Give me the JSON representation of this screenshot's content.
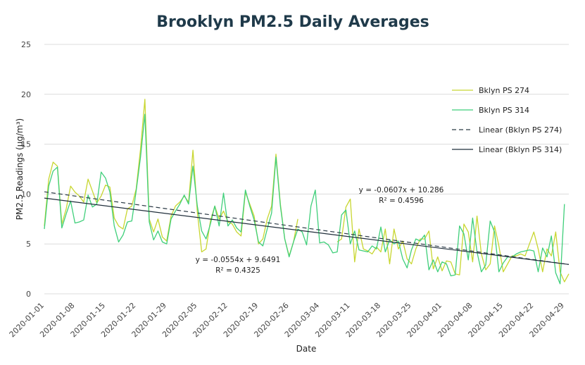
{
  "chart_data": {
    "type": "line",
    "title": "Brooklyn PM2.5 Daily Averages",
    "xlabel": "Date",
    "ylabel": "PM2.5 Readings (µg/m³)",
    "ylim": [
      0,
      25
    ],
    "yticks": [
      "0",
      "5",
      "10",
      "15",
      "20",
      "25"
    ],
    "grid": true,
    "legend_position": "right",
    "x_start": "2020-01-01",
    "x_end": "2020-04-29",
    "xtick_labels": [
      "2020-01-01",
      "2020-01-08",
      "2020-01-15",
      "2020-01-22",
      "2020-01-29",
      "2020-02-05",
      "2020-02-12",
      "2020-02-19",
      "2020-02-26",
      "2020-03-04",
      "2020-03-11",
      "2020-03-18",
      "2020-03-25",
      "2020-04-01",
      "2020-04-08",
      "2020-04-15",
      "2020-04-22",
      "2020-04-29"
    ],
    "series": [
      {
        "name": "Bklyn PS 274",
        "color": "#c8d630",
        "values": [
          6.8,
          11.5,
          13.2,
          12.8,
          7.0,
          8.5,
          10.8,
          10.2,
          9.8,
          9.2,
          11.5,
          10.3,
          9.1,
          9.8,
          10.9,
          10.7,
          7.6,
          6.8,
          6.5,
          8.5,
          8.8,
          10.5,
          14.5,
          19.5,
          7.5,
          6.2,
          7.5,
          5.7,
          5.3,
          7.8,
          8.8,
          9.2,
          9.8,
          9.2,
          14.4,
          8.2,
          4.2,
          4.5,
          7.3,
          8.8,
          7.5,
          8.3,
          7.2,
          7.0,
          6.2,
          5.8,
          10.2,
          9.0,
          7.8,
          5.0,
          5.5,
          7.5,
          8.8,
          14.0,
          9.0,
          5.5,
          3.8,
          5.2,
          7.5,
          null,
          null,
          null,
          null,
          null,
          null,
          null,
          null,
          5.2,
          5.5,
          8.7,
          9.5,
          3.2,
          6.5,
          4.5,
          4.3,
          4.0,
          4.7,
          4.2,
          6.5,
          3.0,
          6.5,
          4.5,
          5.3,
          3.5,
          3.0,
          4.5,
          5.5,
          5.5,
          6.3,
          2.5,
          3.7,
          2.3,
          3.3,
          3.2,
          2.0,
          1.9,
          7.0,
          6.2,
          3.2,
          7.8,
          4.0,
          2.4,
          3.0,
          6.8,
          4.8,
          2.2,
          3.0,
          3.8,
          3.8,
          4.0,
          3.8,
          5.0,
          6.2,
          4.5,
          2.2,
          4.5,
          3.8,
          6.2,
          2.2,
          1.2,
          2.0
        ]
      },
      {
        "name": "Bklyn PS 314",
        "color": "#3fcf7a",
        "values": [
          6.5,
          10.8,
          12.3,
          12.7,
          6.6,
          8.0,
          9.3,
          7.1,
          7.2,
          7.4,
          9.9,
          8.7,
          9.0,
          12.2,
          11.6,
          10.2,
          6.8,
          5.2,
          5.9,
          7.2,
          7.3,
          10.3,
          13.7,
          18.0,
          7.2,
          5.4,
          6.3,
          5.2,
          5.0,
          7.5,
          8.3,
          9.0,
          9.9,
          9.0,
          12.8,
          8.8,
          6.3,
          5.5,
          7.0,
          8.8,
          6.8,
          10.1,
          6.8,
          7.4,
          6.6,
          6.2,
          10.4,
          8.8,
          7.4,
          5.2,
          4.8,
          6.5,
          8.1,
          13.7,
          8.8,
          5.5,
          3.7,
          5.2,
          6.5,
          6.2,
          4.9,
          8.8,
          10.4,
          5.1,
          5.2,
          4.9,
          4.1,
          4.2,
          7.9,
          8.4,
          5.0,
          6.3,
          4.4,
          4.3,
          4.2,
          4.8,
          4.5,
          6.7,
          4.2,
          5.4,
          5.0,
          5.3,
          3.5,
          2.6,
          4.4,
          5.5,
          5.3,
          5.9,
          2.4,
          3.4,
          2.2,
          3.2,
          3.0,
          1.8,
          1.9,
          6.8,
          6.0,
          3.4,
          7.6,
          4.2,
          2.2,
          2.9,
          7.3,
          6.2,
          2.2,
          3.1,
          3.7,
          3.7,
          4.0,
          4.2,
          4.3,
          4.4,
          4.3,
          2.2,
          4.6,
          3.7,
          5.8,
          2.1,
          1.0,
          9.0
        ]
      }
    ],
    "trendlines": [
      {
        "name": "Linear (Bklyn PS 274)",
        "style": "dashed",
        "color": "#2b3a45",
        "slope": -0.0607,
        "intercept": 10.286,
        "equation": "y = -0.0607x + 10.286",
        "r2": "R² = 0.4596"
      },
      {
        "name": "Linear (Bklyn PS 314)",
        "style": "solid",
        "color": "#1f2d3a",
        "slope": -0.0554,
        "intercept": 9.6491,
        "equation": "y = -0.0554x + 9.6491",
        "r2": "R² = 0.4325"
      }
    ]
  }
}
